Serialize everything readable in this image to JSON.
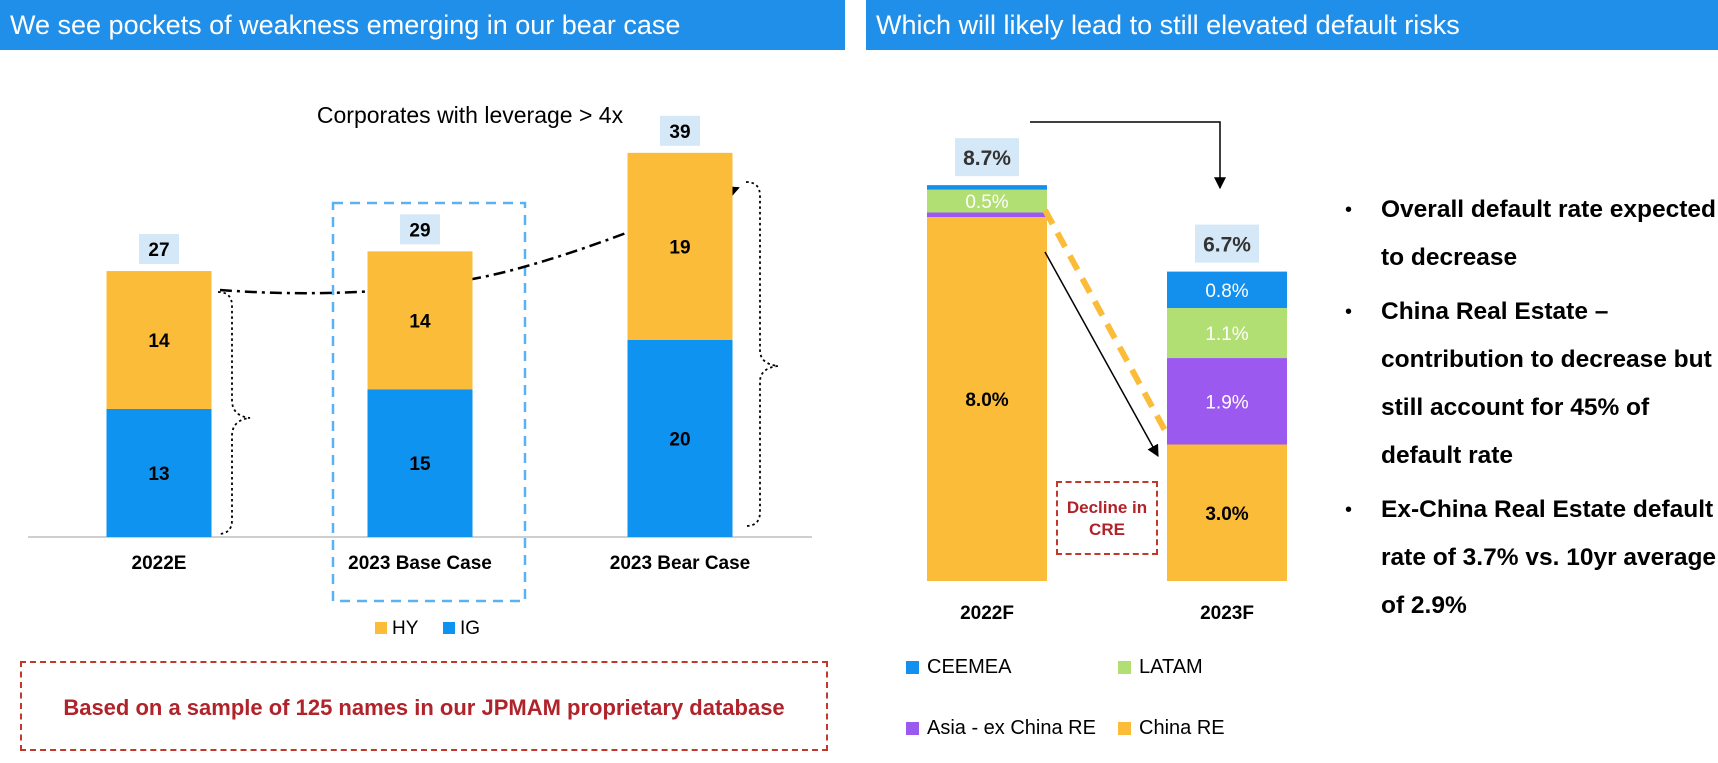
{
  "left_panel": {
    "banner": "We see pockets of weakness emerging in our bear case",
    "note": "Based on a sample of 125 names in our JPMAM proprietary database"
  },
  "right_panel": {
    "banner": "Which will likely lead to still elevated default risks",
    "decline_label": "Decline in CRE",
    "bullets": [
      "Overall default rate expected to decrease",
      "China Real Estate – contribution to decrease but still account for 45% of default rate",
      "Ex-China Real Estate default rate of 3.7% vs. 10yr average of 2.9%"
    ]
  },
  "colors": {
    "banner": "#1f8fea",
    "hy": "#fbbc3a",
    "ig": "#0f93f0",
    "ceemea": "#1390ee",
    "latam": "#b2df74",
    "asia_ex_china_re": "#9b59ef",
    "china_re": "#fbbc3a",
    "total_label_bg": "#d4e8f7",
    "note_red": "#b0232a"
  },
  "chart_data": [
    {
      "type": "bar",
      "stacked": true,
      "title": "Corporates with leverage > 4x",
      "categories": [
        "2022E",
        "2023 Base Case",
        "2023 Bear Case"
      ],
      "series": [
        {
          "name": "IG",
          "values": [
            13,
            15,
            20
          ]
        },
        {
          "name": "HY",
          "values": [
            14,
            14,
            19
          ]
        }
      ],
      "totals": [
        27,
        29,
        39
      ],
      "legend": {
        "position": "bottom",
        "entries": [
          "HY",
          "IG"
        ]
      },
      "ylim": [
        0,
        39
      ],
      "grid": false
    },
    {
      "type": "bar",
      "stacked": true,
      "title": "",
      "categories": [
        "2022F",
        "2023F"
      ],
      "series": [
        {
          "name": "China RE",
          "values": [
            8.0,
            3.0
          ],
          "labels": [
            "8.0%",
            "3.0%"
          ]
        },
        {
          "name": "Asia - ex China RE",
          "values": [
            0.1,
            1.9
          ],
          "labels": [
            "",
            "1.9%"
          ]
        },
        {
          "name": "LATAM",
          "values": [
            0.5,
            1.1
          ],
          "labels": [
            "0.5%",
            "1.1%"
          ]
        },
        {
          "name": "CEEMEA",
          "values": [
            0.1,
            0.8
          ],
          "labels": [
            "",
            "0.8%"
          ]
        }
      ],
      "totals": [
        "8.7%",
        "6.7%"
      ],
      "legend": {
        "position": "bottom",
        "entries": [
          "CEEMEA",
          "LATAM",
          "Asia - ex China RE",
          "China RE"
        ]
      },
      "grid": false
    }
  ]
}
